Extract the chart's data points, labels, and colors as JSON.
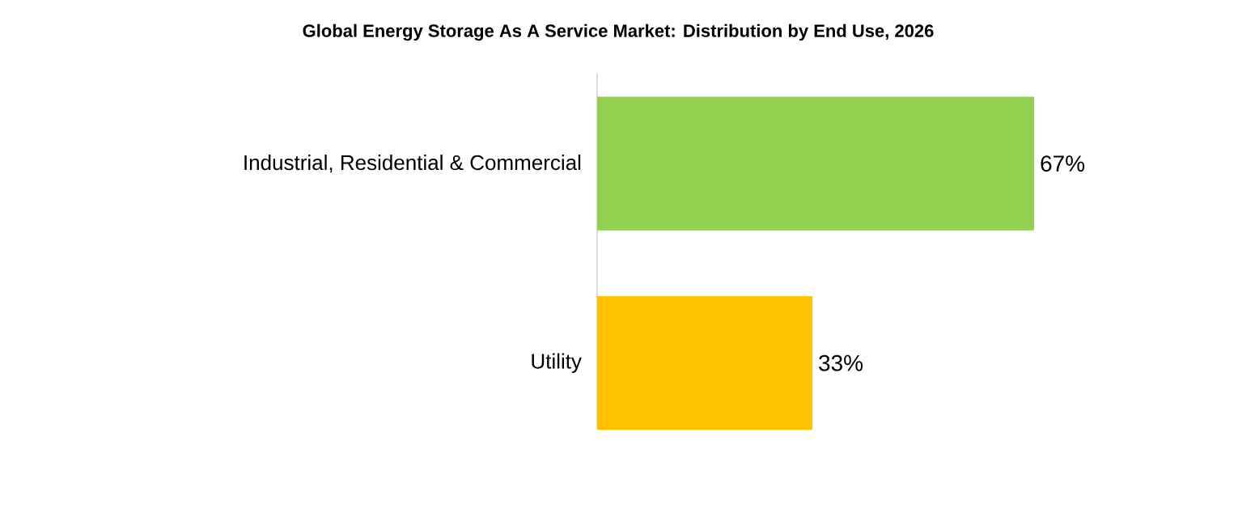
{
  "chart_data": {
    "type": "bar",
    "orientation": "horizontal",
    "title": "Global Energy Storage As A Service Market: Distribution by End Use, 2026",
    "categories": [
      "Industrial, Residential & Commercial",
      "Utility"
    ],
    "values": [
      67,
      33
    ],
    "colors": [
      "#92d050",
      "#ffc000"
    ],
    "value_labels": [
      "67%",
      "33%"
    ]
  }
}
